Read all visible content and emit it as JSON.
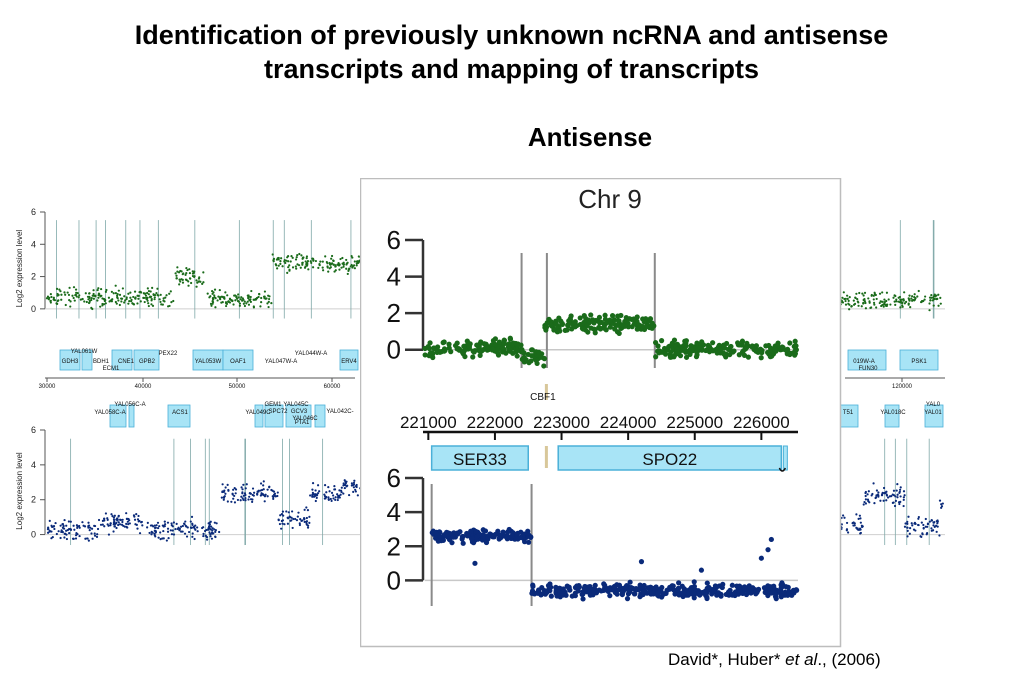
{
  "slide": {
    "title_line1": "Identification of previously unknown ncRNA and antisense",
    "title_line2": "transcripts and mapping of transcripts",
    "subtitle": "Antisense",
    "citation": {
      "authors": "David*, Huber* ",
      "etal": "et al",
      "year": "., (2006)"
    }
  },
  "colors": {
    "sense": "#1a6b1a",
    "antisense": "#0a2a7a",
    "gene_box": "#a8e4f6",
    "gene_border": "#4ab0d8"
  },
  "background_figure": {
    "ylabel": "Log2 expression level",
    "yticks": [
      "6",
      "4",
      "2",
      "0"
    ],
    "xticks": [
      "30000",
      "40000",
      "50000",
      "60000",
      "120000"
    ],
    "genes_top": [
      "GDH3",
      "BDH1",
      "CNE1",
      "GPB2",
      "YAL053W",
      "OAF1",
      "ERV4",
      "YAL061W",
      "ECM1",
      "PEX22",
      "YAL047W-A",
      "YAL044W-A",
      "019W-A",
      "FUN30",
      "PSK1"
    ],
    "genes_bottom": [
      "YAL056C-A",
      "YAL058C-A",
      "ACS1",
      "YAL049C",
      "GEM1",
      "SPC72",
      "YAL045C",
      "GCV3",
      "YAL046C",
      "PTA1",
      "YAL042C-",
      "T51",
      "YAL018C",
      "YAL01",
      "YAL0"
    ]
  },
  "chart_data": {
    "type": "scatter",
    "title": "Chr 9",
    "x": {
      "ticks": [
        "221000",
        "222000",
        "223000",
        "224000",
        "225000",
        "226000"
      ],
      "range": [
        220950,
        226550
      ]
    },
    "top_panel": {
      "name": "sense",
      "yticks": [
        "6",
        "4",
        "2",
        "0"
      ],
      "ylim": [
        -1,
        6
      ],
      "segments": [
        {
          "x": [
            220950,
            222400
          ],
          "level": 0.1
        },
        {
          "x": [
            222400,
            222750
          ],
          "level": -0.4
        },
        {
          "x": [
            222750,
            224400
          ],
          "level": 1.4
        },
        {
          "x": [
            224400,
            226550
          ],
          "level": 0.0
        }
      ]
    },
    "bottom_panel": {
      "name": "antisense",
      "yticks": [
        "6",
        "4",
        "2",
        "0"
      ],
      "ylim": [
        -1.5,
        6
      ],
      "segments": [
        {
          "x": [
            221050,
            222550
          ],
          "level": 2.6
        },
        {
          "x": [
            222550,
            226550
          ],
          "level": -0.6
        }
      ]
    },
    "genes": [
      {
        "name": "SER33",
        "start": 221050,
        "end": 222500,
        "strand": "+"
      },
      {
        "name": "CBF1",
        "start": 222750,
        "end": 222780,
        "strand": "-"
      },
      {
        "name": "SPO22",
        "start": 222950,
        "end": 226300,
        "strand": "+"
      }
    ]
  }
}
